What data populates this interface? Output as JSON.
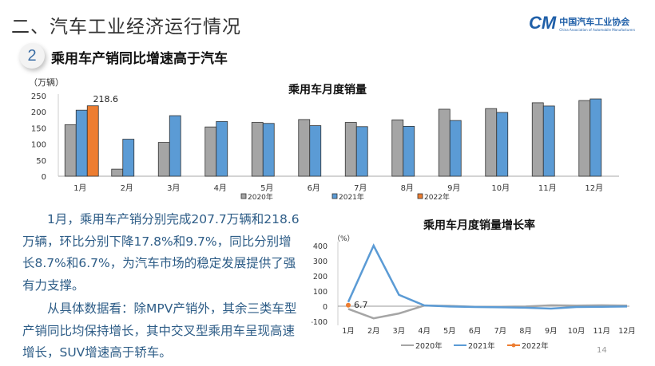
{
  "header": {
    "section_title": "二、汽车工业经济运行情况",
    "subsection_number": "2",
    "subsection_title": "乘用车产销同比增速高于汽车",
    "logo_mark": "CM",
    "logo_cn": "中国汽车工业协会",
    "logo_en": "China Association of Automobile Manufacturers"
  },
  "body": {
    "paragraph1": "1月，乘用车产销分别完成207.7万辆和218.6万辆，环比分别下降17.8%和9.7%，同比分别增长8.7%和6.7%，为汽车市场的稳定发展提供了强有力支撑。",
    "paragraph2": "从具体数据看：除MPV产销外，其余三类车型产销同比均保持增长，其中交叉型乘用车呈现高速增长，SUV增速高于轿车。"
  },
  "page_number": "14",
  "colors": {
    "s2020": "#a5a5a5",
    "s2021": "#5b9bd5",
    "s2022": "#ed7d31",
    "text": "#2e5d87"
  },
  "chart_data": [
    {
      "type": "bar",
      "title": "乘用车月度销量",
      "ylabel": "（万辆）",
      "xlabel": "",
      "ylim": [
        0,
        250
      ],
      "yticks": [
        0,
        50,
        100,
        150,
        200,
        250
      ],
      "categories": [
        "1月",
        "2月",
        "3月",
        "4月",
        "5月",
        "6月",
        "7月",
        "8月",
        "9月",
        "10月",
        "11月",
        "12月"
      ],
      "series": [
        {
          "name": "2020年",
          "values": [
            160,
            22,
            105,
            153,
            167,
            176,
            167,
            175,
            208,
            210,
            228,
            235
          ]
        },
        {
          "name": "2021年",
          "values": [
            205,
            115,
            188,
            170,
            164,
            157,
            154,
            155,
            173,
            198,
            218,
            240
          ]
        },
        {
          "name": "2022年",
          "values": [
            218.6,
            null,
            null,
            null,
            null,
            null,
            null,
            null,
            null,
            null,
            null,
            null
          ]
        }
      ],
      "annotations": [
        {
          "category": "1月",
          "series": "2022年",
          "text": "218.6"
        }
      ],
      "legend_position": "bottom",
      "grid": false
    },
    {
      "type": "line",
      "title": "乘用车月度销量增长率",
      "ylabel": "（%）",
      "xlabel": "",
      "ylim": [
        -100,
        400
      ],
      "yticks": [
        -100,
        0,
        100,
        200,
        300,
        400
      ],
      "categories": [
        "1月",
        "2月",
        "3月",
        "4月",
        "5月",
        "6月",
        "7月",
        "8月",
        "9月",
        "10月",
        "11月",
        "12月"
      ],
      "series": [
        {
          "name": "2020年",
          "values": [
            -18,
            -80,
            -48,
            4,
            2,
            -4,
            -4,
            -2,
            6,
            4,
            6,
            4
          ]
        },
        {
          "name": "2021年",
          "values": [
            28,
            400,
            75,
            5,
            -2,
            -5,
            -7,
            -10,
            -16,
            -5,
            -4,
            -2
          ]
        },
        {
          "name": "2022年",
          "values": [
            6.7,
            null,
            null,
            null,
            null,
            null,
            null,
            null,
            null,
            null,
            null,
            null
          ]
        }
      ],
      "annotations": [
        {
          "category": "1月",
          "series": "2022年",
          "text": "6.7"
        }
      ],
      "legend_position": "bottom",
      "grid": false
    }
  ]
}
